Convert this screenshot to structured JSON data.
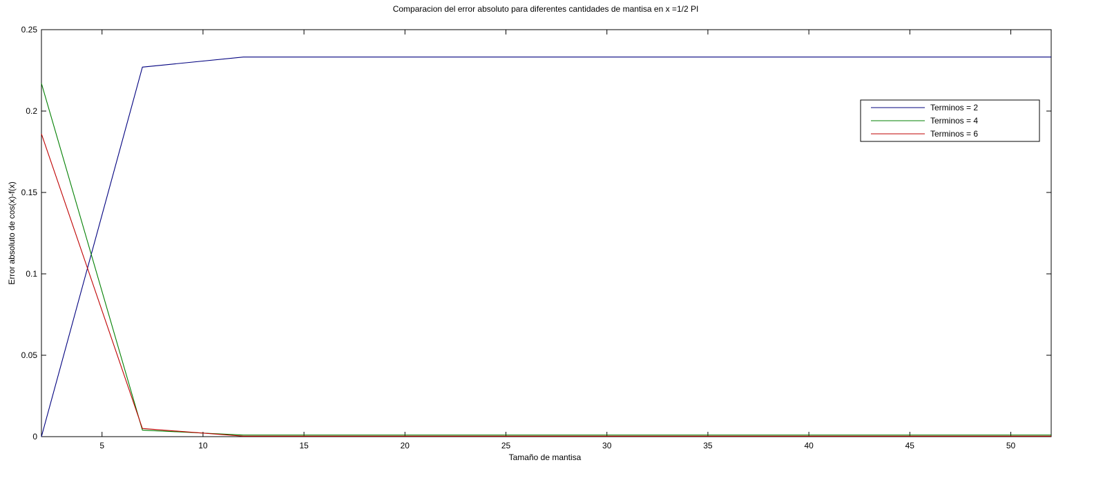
{
  "chart_data": {
    "type": "line",
    "title": "Comparacion del error absoluto para diferentes cantidades de mantisa en x =1/2 PI",
    "xlabel": "Tamaño de mantisa",
    "ylabel": "Error absoluto de cos(x)-f(x)",
    "xlim": [
      2,
      52
    ],
    "ylim": [
      0,
      0.25
    ],
    "xticks": [
      5,
      10,
      15,
      20,
      25,
      30,
      35,
      40,
      45,
      50
    ],
    "yticks": [
      0,
      0.05,
      0.1,
      0.15,
      0.2,
      0.25
    ],
    "xtick_labels": [
      "5",
      "10",
      "15",
      "20",
      "25",
      "30",
      "35",
      "40",
      "45",
      "50"
    ],
    "ytick_labels": [
      "0",
      "0.05",
      "0.1",
      "0.15",
      "0.2",
      "0.25"
    ],
    "grid": false,
    "legend_position": "top-right",
    "x": [
      2,
      7,
      12,
      17,
      22,
      27,
      32,
      37,
      42,
      47,
      52
    ],
    "series": [
      {
        "name": "Terminos = 2",
        "color": "#00007f",
        "values": [
          0.0,
          0.227,
          0.2332,
          0.2332,
          0.2332,
          0.2332,
          0.2332,
          0.2332,
          0.2332,
          0.2332,
          0.2332
        ]
      },
      {
        "name": "Terminos = 4",
        "color": "#007f00",
        "values": [
          0.217,
          0.004,
          0.001,
          0.001,
          0.001,
          0.001,
          0.001,
          0.001,
          0.001,
          0.001,
          0.001
        ]
      },
      {
        "name": "Terminos = 6",
        "color": "#bf0000",
        "values": [
          0.186,
          0.005,
          0.0003,
          0.0003,
          0.0003,
          0.0003,
          0.0003,
          0.0003,
          0.0003,
          0.0003,
          0.0003
        ]
      }
    ]
  }
}
